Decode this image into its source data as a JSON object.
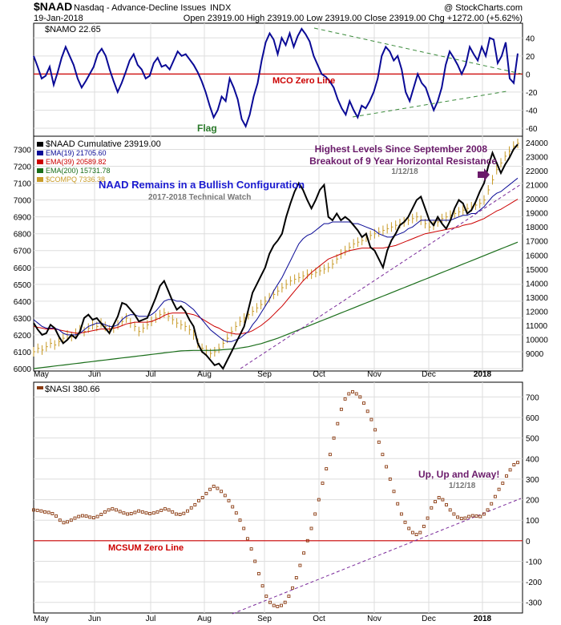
{
  "header": {
    "symbol": "$NAAD",
    "description": "Nasdaq - Advance-Decline Issues",
    "exchange": "INDX",
    "copyright": "@ StockCharts.com",
    "date": "19-Jan-2018",
    "ohlc_text": "Open 23919.00  High 23919.00  Low 23919.00  Close 23919.00  Chg +1272.00 (+5.62%)"
  },
  "colors": {
    "black": "#000000",
    "navy": "#0a0a96",
    "red": "#cc0000",
    "green": "#1a6e1a",
    "gold": "#c89b28",
    "purple": "#6a1a6a",
    "dashed_green": "#3a8a3a",
    "dashed_purple": "#7a2a9a",
    "nasi_dot": "#8a3a10",
    "annotation_blue": "#1a1ad0",
    "grid": "#dddddd",
    "title_green": "#2a7a2a"
  },
  "months": [
    "May",
    "Jun",
    "Jul",
    "Aug",
    "Sep",
    "Oct",
    "Nov",
    "Dec",
    "2018"
  ],
  "chart_data": [
    {
      "type": "line",
      "panel": "top",
      "legend": "$NAMO 22.65",
      "ylim": [
        -60,
        50
      ],
      "yticks": [
        40,
        20,
        0,
        -20,
        -40,
        -60
      ],
      "series": [
        {
          "name": "$NAMO",
          "values": [
            20,
            8,
            -5,
            -2,
            8,
            -12,
            2,
            18,
            30,
            20,
            10,
            -5,
            -15,
            -8,
            0,
            8,
            22,
            28,
            20,
            5,
            -8,
            -20,
            -10,
            2,
            15,
            22,
            10,
            5,
            -5,
            -2,
            12,
            18,
            8,
            10,
            5,
            15,
            25,
            20,
            22,
            16,
            10,
            2,
            -8,
            -20,
            -35,
            -48,
            -40,
            -25,
            -30,
            -5,
            -15,
            -28,
            -50,
            -58,
            -45,
            -25,
            -10,
            15,
            35,
            45,
            38,
            22,
            40,
            32,
            45,
            30,
            42,
            50,
            44,
            36,
            20,
            10,
            0,
            -3,
            -8,
            -15,
            -28,
            -38,
            -45,
            -30,
            -40,
            -48,
            -35,
            -38,
            -30,
            -20,
            -5,
            20,
            30,
            25,
            15,
            20,
            5,
            -20,
            -30,
            -15,
            0,
            -10,
            -15,
            -28,
            -40,
            -30,
            -15,
            10,
            25,
            18,
            10,
            0,
            10,
            30,
            22,
            15,
            30,
            20,
            40,
            38,
            12,
            20,
            35,
            -5,
            -10,
            22.65
          ]
        }
      ],
      "annotations": [
        "MCO Zero Line",
        "Flag"
      ]
    },
    {
      "type": "line",
      "panel": "middle",
      "ylim_left": [
        6000,
        7350
      ],
      "yticks_left": [
        7300,
        7200,
        7100,
        7000,
        6900,
        6800,
        6700,
        6600,
        6500,
        6400,
        6300,
        6200,
        6100,
        6000
      ],
      "yticks_right": [
        24000,
        23000,
        22000,
        21000,
        20000,
        19000,
        18000,
        17000,
        16000,
        15000,
        14000,
        13000,
        12000,
        11000,
        10000,
        9000
      ],
      "series": [
        {
          "name": "$NAAD Cumulative 23919.00",
          "values": [
            6270,
            6230,
            6200,
            6210,
            6260,
            6240,
            6190,
            6150,
            6170,
            6200,
            6180,
            6220,
            6300,
            6320,
            6290,
            6300,
            6270,
            6240,
            6210,
            6260,
            6310,
            6390,
            6380,
            6350,
            6320,
            6280,
            6290,
            6300,
            6360,
            6420,
            6490,
            6520,
            6460,
            6400,
            6350,
            6370,
            6340,
            6290,
            6250,
            6150,
            6100,
            6080,
            6050,
            6020,
            6030,
            6000,
            6050,
            6100,
            6150,
            6200,
            6250,
            6350,
            6450,
            6500,
            6550,
            6600,
            6680,
            6730,
            6760,
            6800,
            6900,
            6980,
            7050,
            7100,
            7060,
            7000,
            6950,
            7000,
            7060,
            7090,
            6900,
            6880,
            6920,
            6880,
            6900,
            6880,
            6850,
            6820,
            6780,
            6800,
            6720,
            6700,
            6650,
            6600,
            6700,
            6760,
            6800,
            6850,
            6870,
            6900,
            6950,
            7000,
            7020,
            6950,
            6880,
            6850,
            6900,
            6860,
            6830,
            6880,
            6950,
            7000,
            6980,
            6920,
            6940,
            6990,
            7050,
            7100,
            7200,
            7280,
            7220,
            7160,
            7210,
            7250,
            7300,
            7330
          ]
        },
        {
          "name": "EMA(19) 21705.60",
          "values": [
            6290,
            6270,
            6250,
            6240,
            6240,
            6240,
            6230,
            6210,
            6200,
            6200,
            6200,
            6210,
            6230,
            6250,
            6260,
            6270,
            6270,
            6260,
            6250,
            6250,
            6260,
            6290,
            6310,
            6320,
            6320,
            6310,
            6310,
            6310,
            6320,
            6340,
            6370,
            6400,
            6410,
            6410,
            6400,
            6400,
            6390,
            6370,
            6350,
            6320,
            6290,
            6260,
            6230,
            6210,
            6190,
            6170,
            6160,
            6160,
            6170,
            6180,
            6200,
            6220,
            6260,
            6290,
            6330,
            6370,
            6410,
            6460,
            6500,
            6540,
            6590,
            6640,
            6690,
            6740,
            6770,
            6790,
            6800,
            6820,
            6840,
            6860,
            6860,
            6870,
            6870,
            6870,
            6870,
            6870,
            6860,
            6860,
            6850,
            6840,
            6830,
            6820,
            6800,
            6790,
            6780,
            6780,
            6790,
            6800,
            6810,
            6830,
            6840,
            6860,
            6880,
            6880,
            6880,
            6880,
            6880,
            6880,
            6880,
            6880,
            6890,
            6900,
            6910,
            6910,
            6920,
            6920,
            6940,
            6960,
            6990,
            7020,
            7040,
            7050,
            7070,
            7090,
            7110,
            7130
          ]
        },
        {
          "name": "EMA(39) 20589.82",
          "values": [
            6250,
            6245,
            6240,
            6235,
            6235,
            6235,
            6230,
            6225,
            6220,
            6215,
            6210,
            6210,
            6215,
            6220,
            6225,
            6230,
            6235,
            6235,
            6235,
            6240,
            6245,
            6255,
            6265,
            6270,
            6275,
            6275,
            6275,
            6275,
            6280,
            6290,
            6300,
            6315,
            6325,
            6330,
            6330,
            6330,
            6330,
            6325,
            6320,
            6310,
            6295,
            6280,
            6265,
            6250,
            6240,
            6225,
            6215,
            6210,
            6205,
            6205,
            6210,
            6215,
            6225,
            6240,
            6255,
            6275,
            6295,
            6320,
            6345,
            6370,
            6400,
            6430,
            6460,
            6490,
            6520,
            6545,
            6570,
            6590,
            6610,
            6630,
            6650,
            6660,
            6670,
            6680,
            6690,
            6700,
            6705,
            6710,
            6715,
            6715,
            6715,
            6715,
            6715,
            6715,
            6720,
            6725,
            6730,
            6740,
            6750,
            6760,
            6770,
            6780,
            6790,
            6800,
            6805,
            6810,
            6815,
            6820,
            6825,
            6830,
            6835,
            6840,
            6850,
            6855,
            6860,
            6870,
            6880,
            6890,
            6905,
            6920,
            6935,
            6945,
            6960,
            6975,
            6990,
            7005
          ]
        },
        {
          "name": "EMA(200) 15731.78",
          "values": [
            6000,
            6003,
            6006,
            6009,
            6012,
            6015,
            6018,
            6021,
            6024,
            6027,
            6030,
            6033,
            6036,
            6039,
            6042,
            6045,
            6048,
            6051,
            6054,
            6057,
            6060,
            6063,
            6066,
            6069,
            6072,
            6075,
            6078,
            6081,
            6084,
            6087,
            6090,
            6093,
            6096,
            6099,
            6102,
            6105,
            6106,
            6107,
            6108,
            6108,
            6108,
            6108,
            6108,
            6109,
            6110,
            6112,
            6114,
            6116,
            6118,
            6122,
            6126,
            6130,
            6136,
            6142,
            6148,
            6156,
            6164,
            6172,
            6180,
            6190,
            6200,
            6210,
            6220,
            6230,
            6240,
            6250,
            6260,
            6270,
            6280,
            6290,
            6300,
            6310,
            6320,
            6330,
            6340,
            6350,
            6360,
            6370,
            6380,
            6390,
            6400,
            6410,
            6420,
            6430,
            6440,
            6450,
            6460,
            6470,
            6480,
            6490,
            6500,
            6510,
            6520,
            6530,
            6540,
            6550,
            6560,
            6570,
            6580,
            6590,
            6600,
            6610,
            6620,
            6630,
            6640,
            6650,
            6660,
            6670,
            6680,
            6690,
            6700,
            6710,
            6720,
            6730,
            6740,
            6750
          ]
        },
        {
          "name": "$COMPQ 7336.38",
          "values": [
            6100,
            6120,
            6110,
            6130,
            6150,
            6140,
            6160,
            6180,
            6200,
            6190,
            6210,
            6230,
            6220,
            6240,
            6260,
            6250,
            6270,
            6250,
            6230,
            6240,
            6260,
            6280,
            6300,
            6270,
            6250,
            6220,
            6240,
            6260,
            6280,
            6300,
            6320,
            6330,
            6310,
            6290,
            6270,
            6260,
            6250,
            6230,
            6200,
            6150,
            6120,
            6110,
            6090,
            6100,
            6120,
            6150,
            6180,
            6220,
            6250,
            6280,
            6300,
            6320,
            6340,
            6360,
            6380,
            6400,
            6420,
            6440,
            6460,
            6480,
            6500,
            6520,
            6530,
            6540,
            6550,
            6560,
            6560,
            6570,
            6580,
            6590,
            6600,
            6620,
            6650,
            6680,
            6700,
            6720,
            6740,
            6750,
            6760,
            6780,
            6790,
            6800,
            6810,
            6820,
            6830,
            6840,
            6850,
            6860,
            6870,
            6880,
            6890,
            6900,
            6880,
            6860,
            6840,
            6850,
            6870,
            6890,
            6900,
            6910,
            6920,
            6930,
            6940,
            6950,
            6960,
            6970,
            6980,
            7000,
            7060,
            7120,
            7180,
            7220,
            7260,
            7290,
            7320,
            7336
          ]
        }
      ],
      "legend": [
        "$NAAD Cumulative 23919.00",
        "EMA(19) 21705.60",
        "EMA(39) 20589.82",
        "EMA(200) 15731.78",
        "$COMPQ 7336.38"
      ],
      "annotations": {
        "title": "NAAD Remains in a Bullish Configuration",
        "subtitle": "2017-2018 Technical Watch",
        "highest_line1": "Highest Levels Since September 2008",
        "highest_line2": "Breakout of 9 Year Horizontal Resistance",
        "highest_date": "1/12/18"
      }
    },
    {
      "type": "scatter",
      "panel": "bottom",
      "legend": "$NASI 380.66",
      "ylim": [
        -340,
        760
      ],
      "yticks": [
        700,
        600,
        500,
        400,
        300,
        200,
        100,
        0,
        -100,
        -200,
        -300
      ],
      "series": [
        {
          "name": "$NASI",
          "values": [
            150,
            148,
            145,
            140,
            138,
            132,
            120,
            100,
            88,
            92,
            100,
            110,
            118,
            122,
            120,
            115,
            112,
            118,
            128,
            140,
            150,
            155,
            150,
            142,
            135,
            130,
            132,
            138,
            145,
            140,
            135,
            132,
            135,
            140,
            148,
            155,
            150,
            140,
            130,
            128,
            133,
            145,
            160,
            175,
            195,
            210,
            230,
            250,
            265,
            255,
            240,
            220,
            195,
            165,
            135,
            100,
            60,
            10,
            -40,
            -100,
            -160,
            -220,
            -270,
            -300,
            -315,
            -320,
            -315,
            -300,
            -270,
            -230,
            -180,
            -120,
            -60,
            0,
            60,
            130,
            200,
            280,
            350,
            420,
            500,
            570,
            640,
            690,
            715,
            725,
            715,
            700,
            670,
            630,
            590,
            540,
            480,
            420,
            360,
            300,
            240,
            180,
            130,
            90,
            60,
            40,
            30,
            40,
            70,
            110,
            160,
            190,
            210,
            200,
            175,
            150,
            130,
            115,
            108,
            110,
            118,
            122,
            120,
            118,
            130,
            150,
            180,
            215,
            250,
            280,
            315,
            345,
            370,
            380.66
          ]
        }
      ],
      "annotations": {
        "zero_line": "MCSUM Zero Line",
        "upup_line1": "Up, Up and Away!",
        "upup_date": "1/12/18"
      }
    }
  ]
}
